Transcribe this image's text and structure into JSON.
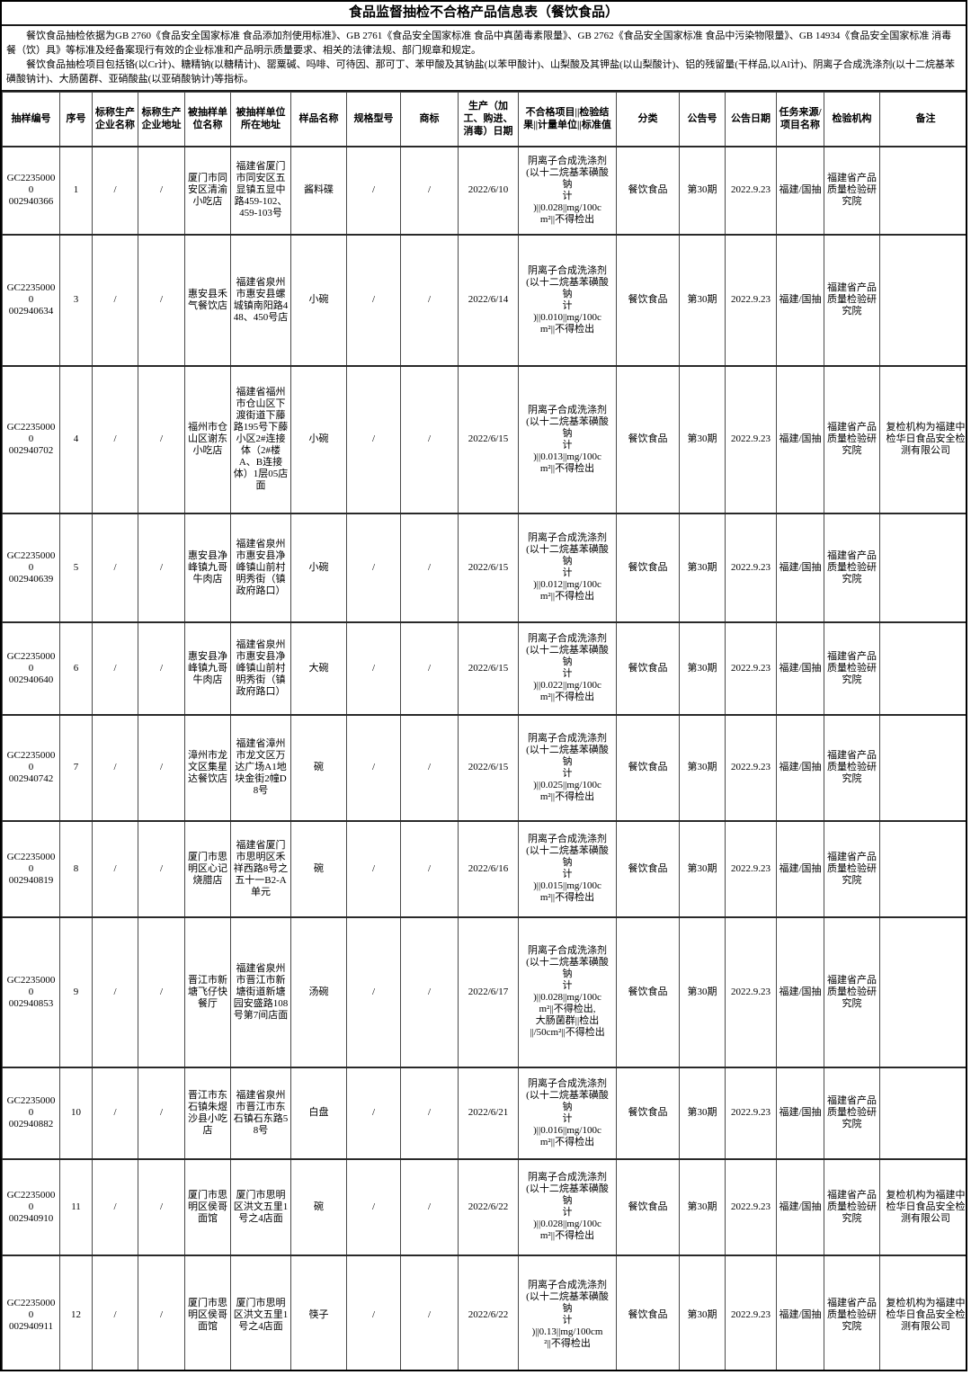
{
  "title": "食品监督抽检不合格产品信息表（餐饮食品）",
  "intro": {
    "p1": "餐饮食品抽检依据为GB 2760《食品安全国家标准 食品添加剂使用标准》、GB 2761《食品安全国家标准 食品中真菌毒素限量》、GB 2762《食品安全国家标准 食品中污染物限量》、GB 14934《食品安全国家标准 消毒餐（饮）具》等标准及经备案现行有效的企业标准和产品明示质量要求、相关的法律法规、部门规章和规定。",
    "p2": "餐饮食品抽检项目包括铬(以Cr计)、糖精钠(以糖精计)、罂粟碱、吗啡、可待因、那可丁、苯甲酸及其钠盐(以苯甲酸计)、山梨酸及其钾盐(以山梨酸计)、铝的残留量(干样品,以Al计)、阴离子合成洗涤剂(以十二烷基苯磺酸钠计)、大肠菌群、亚硝酸盐(以亚硝酸钠计)等指标。"
  },
  "table": {
    "col_keys": [
      "sample-no",
      "seq-no",
      "producer-name",
      "producer-address",
      "sampled-unit-name",
      "sampled-unit-address",
      "sample-name",
      "spec-model",
      "trademark",
      "production-date",
      "failed-item-result",
      "category",
      "notice-no",
      "notice-date",
      "task-source",
      "inspection-agency",
      "remarks"
    ],
    "headers": [
      "抽样编号",
      "序号",
      "标称生产企业名称",
      "标称生产企业地址",
      "被抽样单位名称",
      "被抽样单位所在地址",
      "样品名称",
      "规格型号",
      "商标",
      "生产（加工、购进、消毒）日期",
      "不合格项目||检验结果||计量单位||标准值",
      "分类",
      "公告号",
      "公告日期",
      "任务来源/项目名称",
      "检验机构",
      "备注"
    ],
    "rows": [
      [
        "GC22350000\n002940366",
        "1",
        "/",
        "/",
        "厦门市同安区清渝小吃店",
        "福建省厦门市同安区五显镇五显中路459-102、459-103号",
        "酱料碟",
        "/",
        "/",
        "2022/6/10",
        "阴离子合成洗涤剂\n(以十二烷基苯磺酸\n钠\n计\n)||0.028||mg/100c\nm²||不得检出",
        "餐饮食品",
        "第30期",
        "2022.9.23",
        "福建/国抽",
        "福建省产品质量检验研究院",
        ""
      ],
      [
        "GC22350000\n002940634",
        "3",
        "/",
        "/",
        "惠安县禾气餐饮店",
        "福建省泉州市惠安县螺城镇南阳路448、450号店",
        "小碗",
        "/",
        "/",
        "2022/6/14",
        "阴离子合成洗涤剂\n(以十二烷基苯磺酸\n钠\n计\n)||0.010||mg/100c\nm²||不得检出",
        "餐饮食品",
        "第30期",
        "2022.9.23",
        "福建/国抽",
        "福建省产品质量检验研究院",
        ""
      ],
      [
        "GC22350000\n002940702",
        "4",
        "/",
        "/",
        "福州市仓山区谢东小吃店",
        "福建省福州市仓山区下渡街道下藤路195号下藤小区2#连接体（2#楼A、B连接体）1层05店面",
        "小碗",
        "/",
        "/",
        "2022/6/15",
        "阴离子合成洗涤剂\n(以十二烷基苯磺酸\n钠\n计\n)||0.013||mg/100c\nm²||不得检出",
        "餐饮食品",
        "第30期",
        "2022.9.23",
        "福建/国抽",
        "福建省产品质量检验研究院",
        "复检机构为福建中检华日食品安全检测有限公司"
      ],
      [
        "GC22350000\n002940639",
        "5",
        "/",
        "/",
        "惠安县净峰镇九哥牛肉店",
        "福建省泉州市惠安县净峰镇山前村明秀街（镇政府路口）",
        "小碗",
        "/",
        "/",
        "2022/6/15",
        "阴离子合成洗涤剂\n(以十二烷基苯磺酸\n钠\n计\n)||0.012||mg/100c\nm²||不得检出",
        "餐饮食品",
        "第30期",
        "2022.9.23",
        "福建/国抽",
        "福建省产品质量检验研究院",
        ""
      ],
      [
        "GC22350000\n002940640",
        "6",
        "/",
        "/",
        "惠安县净峰镇九哥牛肉店",
        "福建省泉州市惠安县净峰镇山前村明秀街（镇政府路口）",
        "大碗",
        "/",
        "/",
        "2022/6/15",
        "阴离子合成洗涤剂\n(以十二烷基苯磺酸\n钠\n计\n)||0.022||mg/100c\nm²||不得检出",
        "餐饮食品",
        "第30期",
        "2022.9.23",
        "福建/国抽",
        "福建省产品质量检验研究院",
        ""
      ],
      [
        "GC22350000\n002940742",
        "7",
        "/",
        "/",
        "漳州市龙文区集星达餐饮店",
        "福建省漳州市龙文区万达广场A1地块金街2幢D8号",
        "碗",
        "/",
        "/",
        "2022/6/15",
        "阴离子合成洗涤剂\n(以十二烷基苯磺酸\n钠\n计\n)||0.025||mg/100c\nm²||不得检出",
        "餐饮食品",
        "第30期",
        "2022.9.23",
        "福建/国抽",
        "福建省产品质量检验研究院",
        ""
      ],
      [
        "GC22350000\n002940819",
        "8",
        "/",
        "/",
        "厦门市思明区心记烧腊店",
        "福建省厦门市思明区禾祥西路8号之五十一B2-A单元",
        "碗",
        "/",
        "/",
        "2022/6/16",
        "阴离子合成洗涤剂\n(以十二烷基苯磺酸\n钠\n计\n)||0.015||mg/100c\nm²||不得检出",
        "餐饮食品",
        "第30期",
        "2022.9.23",
        "福建/国抽",
        "福建省产品质量检验研究院",
        ""
      ],
      [
        "GC22350000\n002940853",
        "9",
        "/",
        "/",
        "晋江市新塘飞仔快餐厅",
        "福建省泉州市晋江市新塘街道新塘园安盛路108号第7间店面",
        "汤碗",
        "/",
        "/",
        "2022/6/17",
        "阴离子合成洗涤剂\n(以十二烷基苯磺酸\n钠\n计\n)||0.028||mg/100c\nm²||不得检出,\n大肠菌群||检出\n||/50cm²||不得检出",
        "餐饮食品",
        "第30期",
        "2022.9.23",
        "福建/国抽",
        "福建省产品质量检验研究院",
        ""
      ],
      [
        "GC22350000\n002940882",
        "10",
        "/",
        "/",
        "晋江市东石镇朱煜沙县小吃店",
        "福建省泉州市晋江市东石镇石东路58号",
        "白盘",
        "/",
        "/",
        "2022/6/21",
        "阴离子合成洗涤剂\n(以十二烷基苯磺酸\n钠\n计\n)||0.016||mg/100c\nm²||不得检出",
        "餐饮食品",
        "第30期",
        "2022.9.23",
        "福建/国抽",
        "福建省产品质量检验研究院",
        ""
      ],
      [
        "GC22350000\n002940910",
        "11",
        "/",
        "/",
        "厦门市思明区侯哥面馆",
        "厦门市思明区洪文五里1号之4店面",
        "碗",
        "/",
        "/",
        "2022/6/22",
        "阴离子合成洗涤剂\n(以十二烷基苯磺酸\n钠\n计\n)||0.028||mg/100c\nm²||不得检出",
        "餐饮食品",
        "第30期",
        "2022.9.23",
        "福建/国抽",
        "福建省产品质量检验研究院",
        "复检机构为福建中检华日食品安全检测有限公司"
      ],
      [
        "GC22350000\n002940911",
        "12",
        "/",
        "/",
        "厦门市思明区侯哥面馆",
        "厦门市思明区洪文五里1号之4店面",
        "筷子",
        "/",
        "/",
        "2022/6/22",
        "阴离子合成洗涤剂\n(以十二烷基苯磺酸\n钠\n计\n)||0.13||mg/100cm\n²||不得检出",
        "餐饮食品",
        "第30期",
        "2022.9.23",
        "福建/国抽",
        "福建省产品质量检验研究院",
        "复检机构为福建中检华日食品安全检测有限公司"
      ]
    ]
  }
}
